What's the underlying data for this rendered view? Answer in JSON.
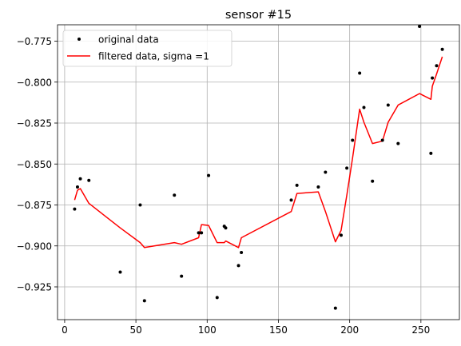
{
  "chart_data": {
    "type": "line",
    "title": "sensor #15",
    "xlabel": "",
    "ylabel": "",
    "xlim": [
      -5,
      277
    ],
    "ylim": [
      -0.945,
      -0.765
    ],
    "xticks": [
      0,
      50,
      100,
      150,
      200,
      250
    ],
    "yticks": [
      -0.775,
      -0.8,
      -0.825,
      -0.85,
      -0.875,
      -0.9,
      -0.925
    ],
    "ytick_labels": [
      "−0.775",
      "−0.800",
      "−0.825",
      "−0.850",
      "−0.875",
      "−0.900",
      "−0.925"
    ],
    "grid": true,
    "legend": {
      "placement": "top-left"
    },
    "series": [
      {
        "name": "original data",
        "kind": "scatter",
        "color": "#000000",
        "points": [
          [
            7,
            -0.8775
          ],
          [
            9,
            -0.864
          ],
          [
            11,
            -0.859
          ],
          [
            17,
            -0.86
          ],
          [
            39,
            -0.916
          ],
          [
            53,
            -0.875
          ],
          [
            56,
            -0.9335
          ],
          [
            77,
            -0.869
          ],
          [
            82,
            -0.9185
          ],
          [
            94,
            -0.892
          ],
          [
            96,
            -0.892
          ],
          [
            101,
            -0.857
          ],
          [
            107,
            -0.9315
          ],
          [
            112,
            -0.888
          ],
          [
            113,
            -0.889
          ],
          [
            122,
            -0.912
          ],
          [
            124,
            -0.904
          ],
          [
            159,
            -0.872
          ],
          [
            163,
            -0.863
          ],
          [
            178,
            -0.864
          ],
          [
            183,
            -0.855
          ],
          [
            190,
            -0.938
          ],
          [
            194,
            -0.8935
          ],
          [
            198,
            -0.8525
          ],
          [
            202,
            -0.8355
          ],
          [
            207,
            -0.7945
          ],
          [
            210,
            -0.8155
          ],
          [
            216,
            -0.8605
          ],
          [
            223,
            -0.8355
          ],
          [
            227,
            -0.814
          ],
          [
            234,
            -0.8375
          ],
          [
            249,
            -0.766
          ],
          [
            257,
            -0.8435
          ],
          [
            258,
            -0.7975
          ],
          [
            261,
            -0.79
          ],
          [
            265,
            -0.78
          ]
        ]
      },
      {
        "name": "filtered data, sigma =1",
        "kind": "line",
        "color": "#ff0000",
        "points": [
          [
            7,
            -0.872
          ],
          [
            9,
            -0.866
          ],
          [
            11,
            -0.865
          ],
          [
            17,
            -0.874
          ],
          [
            39,
            -0.889
          ],
          [
            53,
            -0.898
          ],
          [
            56,
            -0.901
          ],
          [
            77,
            -0.898
          ],
          [
            82,
            -0.899
          ],
          [
            94,
            -0.895
          ],
          [
            96,
            -0.887
          ],
          [
            101,
            -0.8875
          ],
          [
            107,
            -0.898
          ],
          [
            112,
            -0.898
          ],
          [
            113,
            -0.897
          ],
          [
            122,
            -0.901
          ],
          [
            124,
            -0.895
          ],
          [
            159,
            -0.879
          ],
          [
            163,
            -0.868
          ],
          [
            178,
            -0.867
          ],
          [
            183,
            -0.879
          ],
          [
            190,
            -0.8975
          ],
          [
            194,
            -0.8905
          ],
          [
            198,
            -0.869
          ],
          [
            202,
            -0.8465
          ],
          [
            207,
            -0.8165
          ],
          [
            210,
            -0.8245
          ],
          [
            216,
            -0.8375
          ],
          [
            223,
            -0.836
          ],
          [
            227,
            -0.8245
          ],
          [
            234,
            -0.814
          ],
          [
            249,
            -0.807
          ],
          [
            257,
            -0.8105
          ],
          [
            258,
            -0.8025
          ],
          [
            261,
            -0.795
          ],
          [
            265,
            -0.7845
          ]
        ]
      }
    ]
  }
}
